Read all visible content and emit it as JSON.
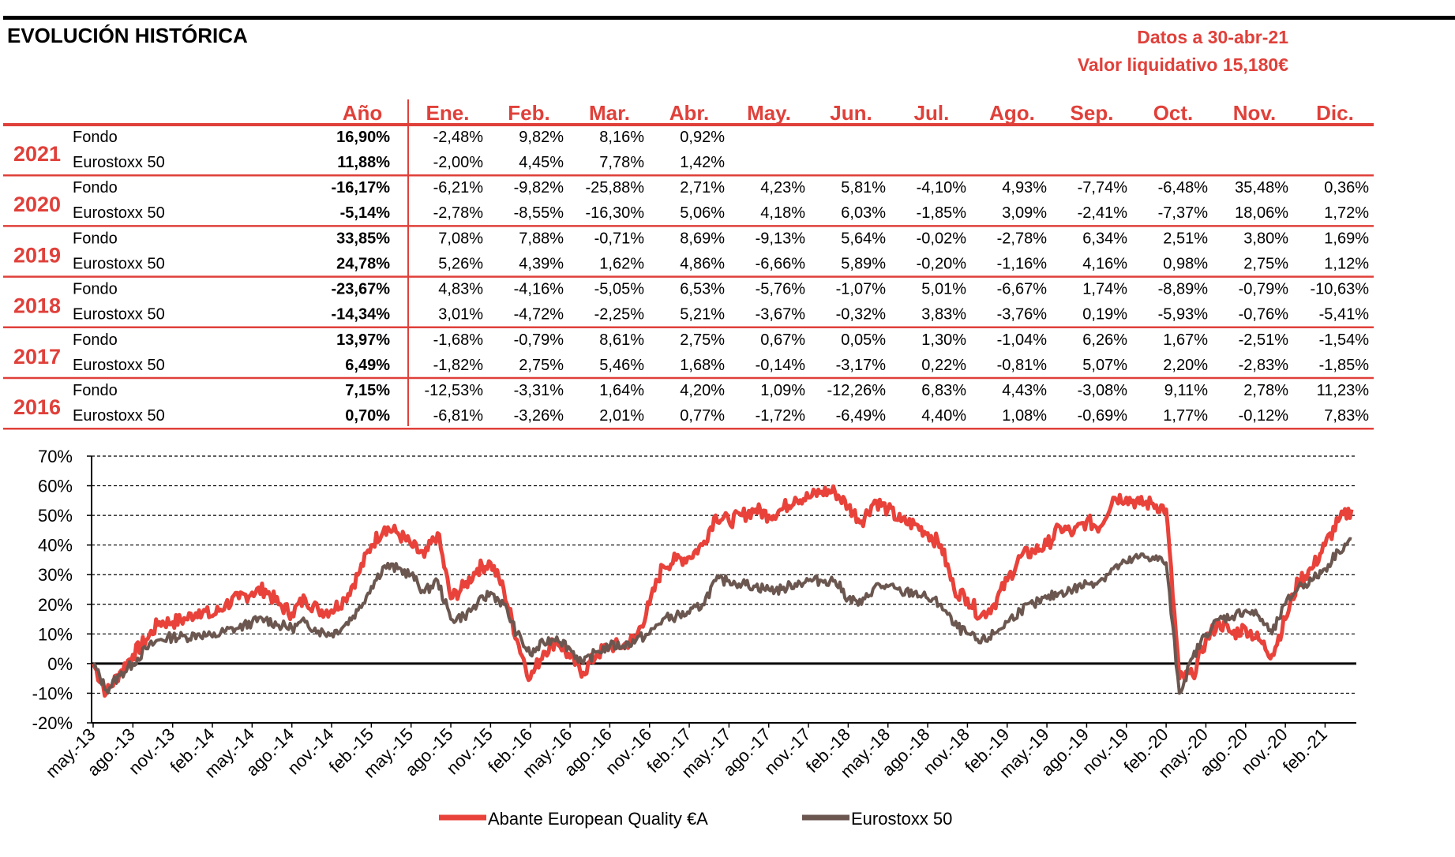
{
  "header": {
    "title": "EVOLUCIÓN HISTÓRICA",
    "date_line": "Datos a 30-abr-21",
    "nav_line": "Valor liquidativo 15,180€"
  },
  "table": {
    "columns": [
      "Año",
      "Ene.",
      "Feb.",
      "Mar.",
      "Abr.",
      "May.",
      "Jun.",
      "Jul.",
      "Ago.",
      "Sep.",
      "Oct.",
      "Nov.",
      "Dic."
    ],
    "years": [
      {
        "year": "2021",
        "rows": [
          {
            "label": "Fondo",
            "annual": "16,90%",
            "months": [
              "-2,48%",
              "9,82%",
              "8,16%",
              "0,92%",
              "",
              "",
              "",
              "",
              "",
              "",
              "",
              ""
            ]
          },
          {
            "label": "Eurostoxx 50",
            "annual": "11,88%",
            "months": [
              "-2,00%",
              "4,45%",
              "7,78%",
              "1,42%",
              "",
              "",
              "",
              "",
              "",
              "",
              "",
              ""
            ]
          }
        ]
      },
      {
        "year": "2020",
        "rows": [
          {
            "label": "Fondo",
            "annual": "-16,17%",
            "months": [
              "-6,21%",
              "-9,82%",
              "-25,88%",
              "2,71%",
              "4,23%",
              "5,81%",
              "-4,10%",
              "4,93%",
              "-7,74%",
              "-6,48%",
              "35,48%",
              "0,36%"
            ]
          },
          {
            "label": "Eurostoxx 50",
            "annual": "-5,14%",
            "months": [
              "-2,78%",
              "-8,55%",
              "-16,30%",
              "5,06%",
              "4,18%",
              "6,03%",
              "-1,85%",
              "3,09%",
              "-2,41%",
              "-7,37%",
              "18,06%",
              "1,72%"
            ]
          }
        ]
      },
      {
        "year": "2019",
        "rows": [
          {
            "label": "Fondo",
            "annual": "33,85%",
            "months": [
              "7,08%",
              "7,88%",
              "-0,71%",
              "8,69%",
              "-9,13%",
              "5,64%",
              "-0,02%",
              "-2,78%",
              "6,34%",
              "2,51%",
              "3,80%",
              "1,69%"
            ]
          },
          {
            "label": "Eurostoxx 50",
            "annual": "24,78%",
            "months": [
              "5,26%",
              "4,39%",
              "1,62%",
              "4,86%",
              "-6,66%",
              "5,89%",
              "-0,20%",
              "-1,16%",
              "4,16%",
              "0,98%",
              "2,75%",
              "1,12%"
            ]
          }
        ]
      },
      {
        "year": "2018",
        "rows": [
          {
            "label": "Fondo",
            "annual": "-23,67%",
            "months": [
              "4,83%",
              "-4,16%",
              "-5,05%",
              "6,53%",
              "-5,76%",
              "-1,07%",
              "5,01%",
              "-6,67%",
              "1,74%",
              "-8,89%",
              "-0,79%",
              "-10,63%"
            ]
          },
          {
            "label": "Eurostoxx 50",
            "annual": "-14,34%",
            "months": [
              "3,01%",
              "-4,72%",
              "-2,25%",
              "5,21%",
              "-3,67%",
              "-0,32%",
              "3,83%",
              "-3,76%",
              "0,19%",
              "-5,93%",
              "-0,76%",
              "-5,41%"
            ]
          }
        ]
      },
      {
        "year": "2017",
        "rows": [
          {
            "label": "Fondo",
            "annual": "13,97%",
            "months": [
              "-1,68%",
              "-0,79%",
              "8,61%",
              "2,75%",
              "0,67%",
              "0,05%",
              "1,30%",
              "-1,04%",
              "6,26%",
              "1,67%",
              "-2,51%",
              "-1,54%"
            ]
          },
          {
            "label": "Eurostoxx 50",
            "annual": "6,49%",
            "months": [
              "-1,82%",
              "2,75%",
              "5,46%",
              "1,68%",
              "-0,14%",
              "-3,17%",
              "0,22%",
              "-0,81%",
              "5,07%",
              "2,20%",
              "-2,83%",
              "-1,85%"
            ]
          }
        ]
      },
      {
        "year": "2016",
        "rows": [
          {
            "label": "Fondo",
            "annual": "7,15%",
            "months": [
              "-12,53%",
              "-3,31%",
              "1,64%",
              "4,20%",
              "1,09%",
              "-12,26%",
              "6,83%",
              "4,43%",
              "-3,08%",
              "9,11%",
              "2,78%",
              "11,23%"
            ]
          },
          {
            "label": "Eurostoxx 50",
            "annual": "0,70%",
            "months": [
              "-6,81%",
              "-3,26%",
              "2,01%",
              "0,77%",
              "-1,72%",
              "-6,49%",
              "4,40%",
              "1,08%",
              "-0,69%",
              "1,77%",
              "-0,12%",
              "7,83%"
            ]
          }
        ]
      }
    ]
  },
  "chart_data": {
    "type": "line",
    "title": "",
    "xlabel": "",
    "ylabel": "",
    "ylim": [
      -20,
      70
    ],
    "yticks": [
      -20,
      -10,
      0,
      10,
      20,
      30,
      40,
      50,
      60,
      70
    ],
    "ytick_labels": [
      "-20%",
      "-10%",
      "0%",
      "10%",
      "20%",
      "30%",
      "40%",
      "50%",
      "60%",
      "70%"
    ],
    "xlim": [
      "may.-13",
      "abr.-21"
    ],
    "xtick_labels": [
      "may.-13",
      "ago.-13",
      "nov.-13",
      "feb.-14",
      "may.-14",
      "ago.-14",
      "nov.-14",
      "feb.-15",
      "may.-15",
      "ago.-15",
      "nov.-15",
      "feb.-16",
      "may.-16",
      "ago.-16",
      "nov.-16",
      "feb.-17",
      "may.-17",
      "ago.-17",
      "nov.-17",
      "feb.-18",
      "may.-18",
      "ago.-18",
      "nov.-18",
      "feb.-19",
      "may.-19",
      "ago.-19",
      "nov.-19",
      "feb.-20",
      "may.-20",
      "ago.-20",
      "nov.-20",
      "feb.-21"
    ],
    "grid": "horizontal dashed",
    "legend": "bottom",
    "series": [
      {
        "name": "Abante European Quality €A",
        "color": "#E8423A",
        "x": [
          "may.-13",
          "jun.-13",
          "jul.-13",
          "ago.-13",
          "sep.-13",
          "oct.-13",
          "nov.-13",
          "dic.-13",
          "ene.-14",
          "feb.-14",
          "mar.-14",
          "abr.-14",
          "may.-14",
          "jun.-14",
          "jul.-14",
          "ago.-14",
          "sep.-14",
          "oct.-14",
          "nov.-14",
          "dic.-14",
          "ene.-15",
          "feb.-15",
          "mar.-15",
          "abr.-15",
          "may.-15",
          "jun.-15",
          "jul.-15",
          "ago.-15",
          "sep.-15",
          "oct.-15",
          "nov.-15",
          "dic.-15",
          "ene.-16",
          "feb.-16",
          "mar.-16",
          "abr.-16",
          "may.-16",
          "jun.-16",
          "jul.-16",
          "ago.-16",
          "sep.-16",
          "oct.-16",
          "nov.-16",
          "dic.-16",
          "ene.-17",
          "feb.-17",
          "mar.-17",
          "abr.-17",
          "may.-17",
          "jun.-17",
          "jul.-17",
          "ago.-17",
          "sep.-17",
          "oct.-17",
          "nov.-17",
          "dic.-17",
          "ene.-18",
          "feb.-18",
          "mar.-18",
          "abr.-18",
          "may.-18",
          "jun.-18",
          "jul.-18",
          "ago.-18",
          "sep.-18",
          "oct.-18",
          "nov.-18",
          "dic.-18",
          "ene.-19",
          "feb.-19",
          "mar.-19",
          "abr.-19",
          "may.-19",
          "jun.-19",
          "jul.-19",
          "ago.-19",
          "sep.-19",
          "oct.-19",
          "nov.-19",
          "dic.-19",
          "ene.-20",
          "feb.-20",
          "mar.-20",
          "abr.-20",
          "may.-20",
          "jun.-20",
          "jul.-20",
          "ago.-20",
          "sep.-20",
          "oct.-20",
          "nov.-20",
          "dic.-20",
          "ene.-21",
          "feb.-21",
          "mar.-21",
          "abr.-21"
        ],
        "values": [
          0,
          -10,
          -3,
          3,
          8,
          14,
          14,
          15,
          18,
          16,
          20,
          22,
          24,
          25,
          20,
          17,
          22,
          18,
          18,
          22,
          30,
          40,
          46,
          44,
          40,
          36,
          44,
          22,
          26,
          32,
          34,
          25,
          8,
          -5,
          4,
          8,
          2,
          -3,
          3,
          6,
          6,
          9,
          20,
          33,
          35,
          36,
          40,
          50,
          48,
          50,
          52,
          50,
          52,
          56,
          56,
          58,
          58,
          53,
          48,
          55,
          52,
          48,
          47,
          44,
          40,
          25,
          22,
          16,
          20,
          28,
          36,
          38,
          40,
          46,
          44,
          48,
          46,
          56,
          56,
          54,
          54,
          52,
          -5,
          -4,
          8,
          14,
          10,
          12,
          8,
          3,
          15,
          28,
          32,
          40,
          48,
          52
        ]
      },
      {
        "name": "Eurostoxx 50",
        "color": "#6B5750",
        "x": [
          "may.-13",
          "jun.-13",
          "jul.-13",
          "ago.-13",
          "sep.-13",
          "oct.-13",
          "nov.-13",
          "dic.-13",
          "ene.-14",
          "feb.-14",
          "mar.-14",
          "abr.-14",
          "may.-14",
          "jun.-14",
          "jul.-14",
          "ago.-14",
          "sep.-14",
          "oct.-14",
          "nov.-14",
          "dic.-14",
          "ene.-15",
          "feb.-15",
          "mar.-15",
          "abr.-15",
          "may.-15",
          "jun.-15",
          "jul.-15",
          "ago.-15",
          "sep.-15",
          "oct.-15",
          "nov.-15",
          "dic.-15",
          "ene.-16",
          "feb.-16",
          "mar.-16",
          "abr.-16",
          "may.-16",
          "jun.-16",
          "jul.-16",
          "ago.-16",
          "sep.-16",
          "oct.-16",
          "nov.-16",
          "dic.-16",
          "ene.-17",
          "feb.-17",
          "mar.-17",
          "abr.-17",
          "may.-17",
          "jun.-17",
          "jul.-17",
          "ago.-17",
          "sep.-17",
          "oct.-17",
          "nov.-17",
          "dic.-17",
          "ene.-18",
          "feb.-18",
          "mar.-18",
          "abr.-18",
          "may.-18",
          "jun.-18",
          "jul.-18",
          "ago.-18",
          "sep.-18",
          "oct.-18",
          "nov.-18",
          "dic.-18",
          "ene.-19",
          "feb.-19",
          "mar.-19",
          "abr.-19",
          "may.-19",
          "jun.-19",
          "jul.-19",
          "ago.-19",
          "sep.-19",
          "oct.-19",
          "nov.-19",
          "dic.-19",
          "ene.-20",
          "feb.-20",
          "mar.-20",
          "abr.-20",
          "may.-20",
          "jun.-20",
          "jul.-20",
          "ago.-20",
          "sep.-20",
          "oct.-20",
          "nov.-20",
          "dic.-20",
          "ene.-21",
          "feb.-21",
          "mar.-21",
          "abr.-21"
        ],
        "values": [
          0,
          -9,
          -4,
          0,
          5,
          8,
          9,
          9,
          10,
          9,
          11,
          12,
          14,
          15,
          13,
          12,
          14,
          11,
          10,
          13,
          18,
          26,
          33,
          32,
          30,
          24,
          28,
          15,
          16,
          20,
          24,
          20,
          10,
          3,
          7,
          9,
          5,
          0,
          4,
          6,
          6,
          8,
          10,
          15,
          16,
          17,
          20,
          28,
          28,
          27,
          26,
          25,
          25,
          27,
          28,
          28,
          28,
          22,
          20,
          26,
          26,
          24,
          24,
          22,
          20,
          13,
          10,
          7,
          10,
          14,
          18,
          20,
          22,
          24,
          25,
          27,
          28,
          32,
          34,
          36,
          36,
          34,
          -10,
          2,
          10,
          15,
          16,
          18,
          16,
          10,
          20,
          26,
          28,
          32,
          38,
          42
        ]
      }
    ]
  },
  "legend": {
    "items": [
      "Abante European Quality €A",
      "Eurostoxx 50"
    ]
  }
}
